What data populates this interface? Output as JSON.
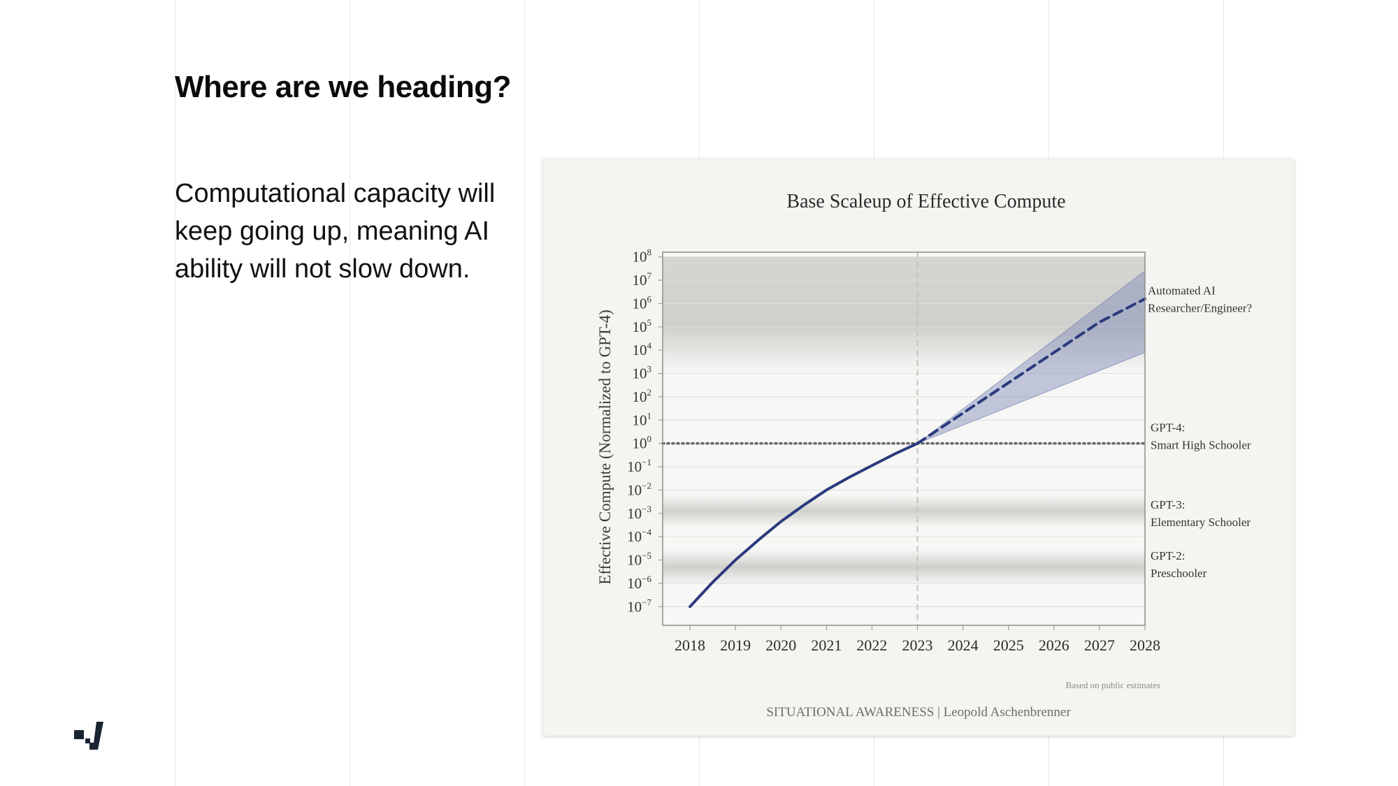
{
  "slide": {
    "title": "Where are we heading?",
    "body": "Computational capacity will keep going up, meaning AI ability will not slow down."
  },
  "logo": {
    "icon": "brand-logo-icon",
    "color": "#1b2433"
  },
  "chart_data": {
    "type": "line",
    "title": "Base Scaleup of Effective Compute",
    "ylabel": "Effective Compute (Normalized to GPT-4)",
    "xlabel": "",
    "x_ticks": [
      "2018",
      "2019",
      "2020",
      "2021",
      "2022",
      "2023",
      "2024",
      "2025",
      "2026",
      "2027",
      "2028"
    ],
    "y_scale": "log",
    "y_ticks": [
      {
        "base": "10",
        "exp": "8"
      },
      {
        "base": "10",
        "exp": "7"
      },
      {
        "base": "10",
        "exp": "6"
      },
      {
        "base": "10",
        "exp": "5"
      },
      {
        "base": "10",
        "exp": "4"
      },
      {
        "base": "10",
        "exp": "3"
      },
      {
        "base": "10",
        "exp": "2"
      },
      {
        "base": "10",
        "exp": "1"
      },
      {
        "base": "10",
        "exp": "0"
      },
      {
        "base": "10",
        "exp": "−1"
      },
      {
        "base": "10",
        "exp": "−2"
      },
      {
        "base": "10",
        "exp": "−3"
      },
      {
        "base": "10",
        "exp": "−4"
      },
      {
        "base": "10",
        "exp": "−5"
      },
      {
        "base": "10",
        "exp": "−6"
      },
      {
        "base": "10",
        "exp": "−7"
      }
    ],
    "xlim": [
      2017.4,
      2028
    ],
    "ylim_log10": [
      -7.8,
      8.2
    ],
    "grid": true,
    "vertical_reference_year": 2023,
    "horizontal_reference_log10": 0,
    "series": [
      {
        "style": "solid",
        "color": "#2a3a7c",
        "points": [
          [
            2018,
            -7
          ],
          [
            2018.5,
            -5.95
          ],
          [
            2019,
            -5.0
          ],
          [
            2019.5,
            -4.15
          ],
          [
            2020,
            -3.35
          ],
          [
            2020.5,
            -2.65
          ],
          [
            2021,
            -2.0
          ],
          [
            2021.5,
            -1.45
          ],
          [
            2022,
            -0.95
          ],
          [
            2022.5,
            -0.45
          ],
          [
            2023,
            0
          ]
        ]
      },
      {
        "style": "dashed",
        "color": "#2a3a7c",
        "points": [
          [
            2023,
            0
          ],
          [
            2024,
            1.3
          ],
          [
            2025,
            2.6
          ],
          [
            2026,
            3.9
          ],
          [
            2027,
            5.2
          ],
          [
            2028,
            6.2
          ]
        ]
      }
    ],
    "uncertainty_band": {
      "color": "#7c88b8",
      "upper": [
        [
          2023,
          0
        ],
        [
          2028,
          7.4
        ]
      ],
      "lower": [
        [
          2023,
          0
        ],
        [
          2028,
          3.9
        ]
      ]
    },
    "shaded_bands": [
      {
        "from_log10": 3,
        "to_log10": 8
      },
      {
        "from_log10": -3.6,
        "to_log10": -2.2
      },
      {
        "from_log10": -6.1,
        "to_log10": -4.5
      }
    ],
    "annotations": [
      {
        "y_log10": 6,
        "lines": [
          "Automated AI",
          "Researcher/Engineer?"
        ]
      },
      {
        "y_log10": 0,
        "lines": [
          "GPT-4:",
          "Smart High Schooler"
        ]
      },
      {
        "y_log10": -3.3,
        "lines": [
          "GPT-3:",
          "Elementary Schooler"
        ]
      },
      {
        "y_log10": -5.5,
        "lines": [
          "GPT-2:",
          "Preschooler"
        ]
      }
    ],
    "note": "Based on public estimates",
    "source": "SITUATIONAL AWARENESS | Leopold Aschenbrenner"
  }
}
